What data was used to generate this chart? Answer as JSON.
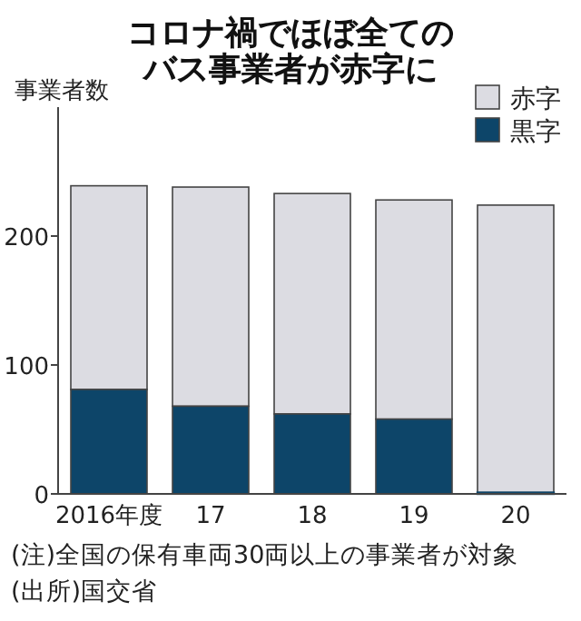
{
  "chart_data": {
    "type": "bar",
    "title": "コロナ禍でほぼ全ての",
    "subtitle": "バス事業者が赤字に",
    "ylabel": "事業者数",
    "categories": [
      "2016年度",
      "17",
      "18",
      "19",
      "20"
    ],
    "series": [
      {
        "name": "黒字",
        "color": "#0d4569",
        "values": [
          81,
          68,
          62,
          58,
          1
        ]
      },
      {
        "name": "赤字",
        "color": "#dcdce2",
        "values": [
          158,
          170,
          171,
          170,
          223
        ]
      }
    ],
    "stacked": true,
    "ylim": [
      0,
      300
    ],
    "yticks": [
      0,
      100,
      200
    ],
    "grid": false,
    "legend": "top right",
    "annotations": [
      "(注)全国の保有車両30両以上の事業者が対象",
      "(出所)国交省"
    ]
  }
}
